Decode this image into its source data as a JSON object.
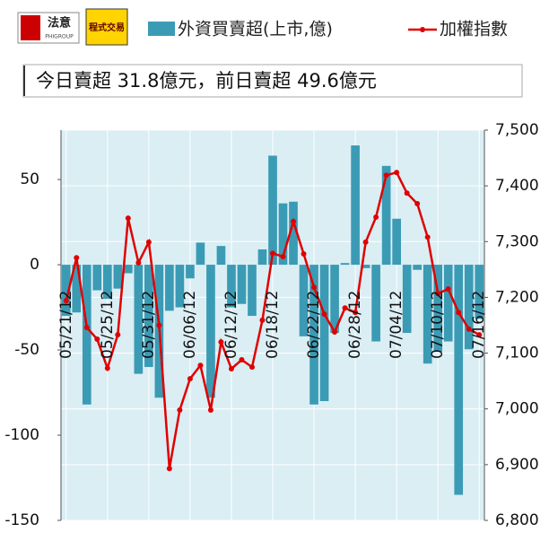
{
  "logos": [
    {
      "name": "法意",
      "sub": "PHIGROUP"
    },
    {
      "name": "程式交易"
    }
  ],
  "chart_data": {
    "type": "bar-line",
    "subtitle": "今日賣超 31.8億元，前日賣超 49.6億元",
    "categories": [
      "05/21/12",
      null,
      null,
      null,
      "05/25/12",
      null,
      null,
      null,
      "05/31/12",
      null,
      null,
      null,
      "06/06/12",
      null,
      null,
      null,
      "06/12/12",
      null,
      null,
      null,
      "06/18/12",
      null,
      null,
      null,
      "06/22/12",
      null,
      null,
      null,
      "06/28/12",
      null,
      null,
      null,
      "07/04/12",
      null,
      null,
      null,
      "07/10/12",
      null,
      null,
      null,
      "07/16/12"
    ],
    "ylim": [
      -150,
      79
    ],
    "yticks": [
      -150,
      -100,
      -50,
      0,
      50
    ],
    "y2lim": [
      6800,
      7500
    ],
    "y2ticks": [
      {
        "value": 6800,
        "label": "6,800"
      },
      {
        "value": 6900,
        "label": "6,900"
      },
      {
        "value": 7000,
        "label": "7,000"
      },
      {
        "value": 7100,
        "label": "7,100"
      },
      {
        "value": 7200,
        "label": "7,200"
      },
      {
        "value": 7300,
        "label": "7,300"
      },
      {
        "value": 7400,
        "label": "7,400"
      },
      {
        "value": 7500,
        "label": "7,500"
      }
    ],
    "grid": true,
    "series": [
      {
        "name": "外資買賣超(上市,億)",
        "color": "#3b9bb5",
        "kind": "bar",
        "values": [
          -30,
          -28,
          -82,
          -15,
          -20,
          -14,
          -5,
          -64,
          -60,
          -78,
          -27,
          -25,
          -8,
          13,
          -78,
          11,
          -25,
          -23,
          -30,
          9,
          64,
          36,
          37,
          -42,
          -82,
          -80,
          -40,
          1,
          70,
          -2,
          -45,
          58,
          27,
          -40,
          -3,
          -58,
          -51,
          -45,
          -135,
          -49.6,
          -31.8
        ]
      },
      {
        "name": "加權指數",
        "color": "#e00000",
        "kind": "line",
        "axis": "y2",
        "values": [
          7194,
          7271,
          7146,
          7125,
          7073,
          7133,
          7342,
          7262,
          7299,
          7150,
          6893,
          6998,
          7054,
          7078,
          6998,
          7120,
          7072,
          7088,
          7075,
          7159,
          7279,
          7273,
          7336,
          7278,
          7218,
          7170,
          7138,
          7181,
          7173,
          7299,
          7344,
          7419,
          7424,
          7387,
          7368,
          7308,
          7207,
          7215,
          7173,
          7143,
          7133
        ]
      }
    ]
  }
}
